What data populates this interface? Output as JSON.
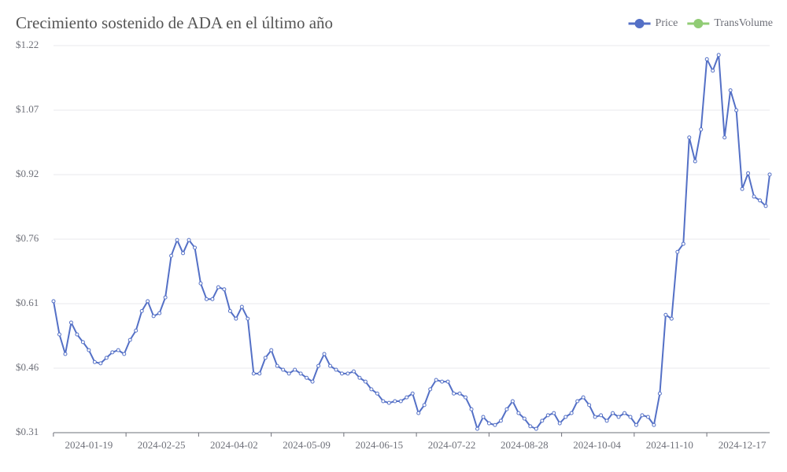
{
  "chart_data": {
    "type": "line",
    "title": "Crecimiento sostenido de ADA en el último año",
    "x": [
      "2024-01-01",
      "2024-01-04",
      "2024-01-07",
      "2024-01-10",
      "2024-01-13",
      "2024-01-16",
      "2024-01-19",
      "2024-01-22",
      "2024-01-25",
      "2024-01-28",
      "2024-01-31",
      "2024-02-03",
      "2024-02-06",
      "2024-02-09",
      "2024-02-12",
      "2024-02-15",
      "2024-02-18",
      "2024-02-21",
      "2024-02-24",
      "2024-02-27",
      "2024-03-01",
      "2024-03-04",
      "2024-03-07",
      "2024-03-10",
      "2024-03-13",
      "2024-03-16",
      "2024-03-19",
      "2024-03-22",
      "2024-03-25",
      "2024-03-28",
      "2024-03-31",
      "2024-04-03",
      "2024-04-06",
      "2024-04-09",
      "2024-04-12",
      "2024-04-15",
      "2024-04-18",
      "2024-04-21",
      "2024-04-24",
      "2024-04-27",
      "2024-04-30",
      "2024-05-03",
      "2024-05-06",
      "2024-05-09",
      "2024-05-12",
      "2024-05-15",
      "2024-05-18",
      "2024-05-21",
      "2024-05-24",
      "2024-05-27",
      "2024-05-30",
      "2024-06-02",
      "2024-06-05",
      "2024-06-08",
      "2024-06-11",
      "2024-06-14",
      "2024-06-17",
      "2024-06-20",
      "2024-06-23",
      "2024-06-26",
      "2024-06-29",
      "2024-07-02",
      "2024-07-05",
      "2024-07-08",
      "2024-07-11",
      "2024-07-14",
      "2024-07-17",
      "2024-07-20",
      "2024-07-23",
      "2024-07-26",
      "2024-07-29",
      "2024-08-01",
      "2024-08-04",
      "2024-08-07",
      "2024-08-10",
      "2024-08-13",
      "2024-08-16",
      "2024-08-19",
      "2024-08-22",
      "2024-08-25",
      "2024-08-28",
      "2024-08-31",
      "2024-09-03",
      "2024-09-06",
      "2024-09-09",
      "2024-09-12",
      "2024-09-15",
      "2024-09-18",
      "2024-09-21",
      "2024-09-24",
      "2024-09-27",
      "2024-09-30",
      "2024-10-03",
      "2024-10-06",
      "2024-10-09",
      "2024-10-12",
      "2024-10-15",
      "2024-10-18",
      "2024-10-21",
      "2024-10-24",
      "2024-10-27",
      "2024-10-30",
      "2024-11-02",
      "2024-11-05",
      "2024-11-08",
      "2024-11-11",
      "2024-11-14",
      "2024-11-17",
      "2024-11-20",
      "2024-11-23",
      "2024-11-26",
      "2024-11-29",
      "2024-12-02",
      "2024-12-05",
      "2024-12-08",
      "2024-12-11",
      "2024-12-14",
      "2024-12-17",
      "2024-12-20",
      "2024-12-23",
      "2024-12-26",
      "2024-12-29",
      "2024-12-31"
    ],
    "series": [
      {
        "name": "Price",
        "color": "#5470c6",
        "values": [
          0.619,
          0.541,
          0.495,
          0.569,
          0.541,
          0.523,
          0.504,
          0.476,
          0.473,
          0.486,
          0.499,
          0.504,
          0.495,
          0.528,
          0.55,
          0.596,
          0.619,
          0.584,
          0.591,
          0.628,
          0.726,
          0.763,
          0.732,
          0.763,
          0.745,
          0.661,
          0.624,
          0.624,
          0.652,
          0.647,
          0.596,
          0.578,
          0.606,
          0.578,
          0.449,
          0.449,
          0.486,
          0.504,
          0.467,
          0.458,
          0.449,
          0.458,
          0.449,
          0.439,
          0.43,
          0.467,
          0.495,
          0.467,
          0.458,
          0.449,
          0.449,
          0.454,
          0.439,
          0.43,
          0.412,
          0.402,
          0.384,
          0.38,
          0.384,
          0.384,
          0.393,
          0.402,
          0.356,
          0.375,
          0.412,
          0.434,
          0.43,
          0.43,
          0.402,
          0.402,
          0.393,
          0.365,
          0.319,
          0.347,
          0.332,
          0.328,
          0.338,
          0.365,
          0.384,
          0.356,
          0.343,
          0.325,
          0.319,
          0.338,
          0.351,
          0.356,
          0.332,
          0.347,
          0.356,
          0.384,
          0.393,
          0.375,
          0.347,
          0.351,
          0.338,
          0.356,
          0.347,
          0.356,
          0.347,
          0.328,
          0.351,
          0.347,
          0.328,
          0.402,
          0.587,
          0.578,
          0.735,
          0.754,
          1.004,
          0.948,
          1.023,
          1.188,
          1.161,
          1.198,
          1.004,
          1.115,
          1.068,
          0.883,
          0.92,
          0.865,
          0.856,
          0.843,
          0.917
        ]
      }
    ],
    "legend": [
      {
        "name": "Price",
        "color": "#5470c6"
      },
      {
        "name": "TransVolume",
        "color": "#91cc75"
      }
    ],
    "xlim": [
      "2024-01-01",
      "2024-12-31"
    ],
    "xticks": [
      "2024-01-19",
      "2024-02-25",
      "2024-04-02",
      "2024-05-09",
      "2024-06-15",
      "2024-07-22",
      "2024-08-28",
      "2024-10-04",
      "2024-11-10",
      "2024-12-17"
    ],
    "ylim": [
      0.31,
      1.22
    ],
    "yticks": [
      {
        "value": 0.31,
        "label": "$0.31"
      },
      {
        "value": 0.4617,
        "label": "$0.46"
      },
      {
        "value": 0.6133,
        "label": "$0.61"
      },
      {
        "value": 0.765,
        "label": "$0.76"
      },
      {
        "value": 0.9167,
        "label": "$0.92"
      },
      {
        "value": 1.0683,
        "label": "$1.07"
      },
      {
        "value": 1.22,
        "label": "$1.22"
      }
    ],
    "grid": true,
    "legend_position": "top-right"
  }
}
